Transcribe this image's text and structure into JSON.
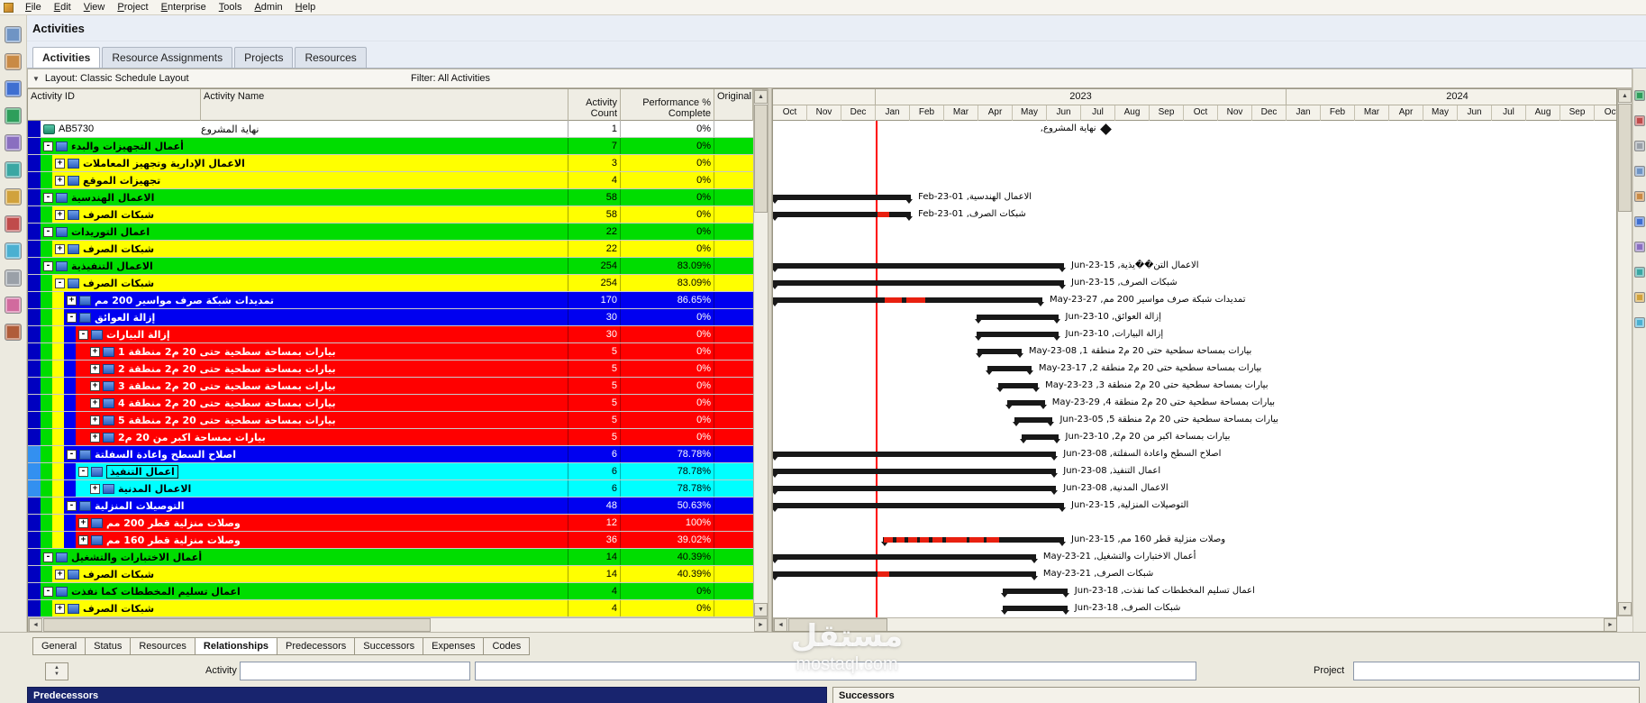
{
  "window": {
    "title": "Activities"
  },
  "menu": {
    "items": [
      "File",
      "Edit",
      "View",
      "Project",
      "Enterprise",
      "Tools",
      "Admin",
      "Help"
    ]
  },
  "view_tabs": [
    {
      "label": "Activities",
      "active": true
    },
    {
      "label": "Resource Assignments",
      "active": false
    },
    {
      "label": "Projects",
      "active": false
    },
    {
      "label": "Resources",
      "active": false
    }
  ],
  "layout_bar": {
    "layout": "Layout: Classic Schedule Layout",
    "filter": "Filter: All Activities"
  },
  "glyphs": {
    "chevron": "▼",
    "up": "▲",
    "down": "▼",
    "left": "◄",
    "right": "►"
  },
  "colors": {
    "white": "#ffffff",
    "green": "#00dd00",
    "yellow": "#ffff00",
    "blue": "#0000f0",
    "red": "#ff0000",
    "cyan": "#00ffff",
    "gutter": "#0000c0",
    "gutter_selected": "#3390f0",
    "data_date": "#ff0000",
    "bar": "#181818",
    "progress": "#e82010"
  },
  "table": {
    "columns": [
      "Activity ID",
      "Activity Name",
      "Activity\nCount",
      "Performance %\nComplete",
      "Original"
    ],
    "rows": [
      {
        "id": "AB5730",
        "name": "نهاية المشروع",
        "count": "1",
        "perf": "0%",
        "color": "white",
        "strips": [],
        "expand": null
      },
      {
        "name": "أعمال التجهيزات والبدء",
        "count": "7",
        "perf": "0%",
        "color": "green",
        "strips": [],
        "expand": "-"
      },
      {
        "name": "الاعمال الإدارية وتجهيز المعاملات",
        "count": "3",
        "perf": "0%",
        "color": "yellow",
        "strips": [
          "green"
        ],
        "expand": "+"
      },
      {
        "name": "تجهيزات الموقع",
        "count": "4",
        "perf": "0%",
        "color": "yellow",
        "strips": [
          "green"
        ],
        "expand": "+"
      },
      {
        "name": "الاعمال الهندسية",
        "count": "58",
        "perf": "0%",
        "color": "green",
        "strips": [],
        "expand": "-"
      },
      {
        "name": "شبكات الصرف",
        "count": "58",
        "perf": "0%",
        "color": "yellow",
        "strips": [
          "green"
        ],
        "expand": "+"
      },
      {
        "name": "اعمال التوريدات",
        "count": "22",
        "perf": "0%",
        "color": "green",
        "strips": [],
        "expand": "-"
      },
      {
        "name": "شبكات الصرف",
        "count": "22",
        "perf": "0%",
        "color": "yellow",
        "strips": [
          "green"
        ],
        "expand": "+"
      },
      {
        "name": "الاعمال التنفيذية",
        "count": "254",
        "perf": "83.09%",
        "color": "green",
        "strips": [],
        "expand": "-"
      },
      {
        "name": "شبكات الصرف",
        "count": "254",
        "perf": "83.09%",
        "color": "yellow",
        "strips": [
          "green"
        ],
        "expand": "-"
      },
      {
        "name": "تمديدات شبكة صرف مواسير 200 مم",
        "count": "170",
        "perf": "86.65%",
        "color": "blue",
        "strips": [
          "green",
          "yellow"
        ],
        "expand": "+"
      },
      {
        "name": "إزالة العوائق",
        "count": "30",
        "perf": "0%",
        "color": "blue",
        "strips": [
          "green",
          "yellow"
        ],
        "expand": "-"
      },
      {
        "name": "إزالة البيارات",
        "count": "30",
        "perf": "0%",
        "color": "red",
        "strips": [
          "green",
          "yellow",
          "blue"
        ],
        "expand": "-"
      },
      {
        "name": "بيارات بمساحة سطحية حتى 20 م2  منطقة 1",
        "count": "5",
        "perf": "0%",
        "color": "red",
        "strips": [
          "green",
          "yellow",
          "blue",
          "red"
        ],
        "expand": "+"
      },
      {
        "name": "بيارات بمساحة سطحية حتى 20 م2  منطقة 2",
        "count": "5",
        "perf": "0%",
        "color": "red",
        "strips": [
          "green",
          "yellow",
          "blue",
          "red"
        ],
        "expand": "+"
      },
      {
        "name": "بيارات بمساحة سطحية حتى 20 م2  منطقة 3",
        "count": "5",
        "perf": "0%",
        "color": "red",
        "strips": [
          "green",
          "yellow",
          "blue",
          "red"
        ],
        "expand": "+"
      },
      {
        "name": "بيارات بمساحة سطحية حتى 20 م2  منطقة 4",
        "count": "5",
        "perf": "0%",
        "color": "red",
        "strips": [
          "green",
          "yellow",
          "blue",
          "red"
        ],
        "expand": "+"
      },
      {
        "name": "بيارات بمساحة سطحية حتى 20 م2  منطقة 5",
        "count": "5",
        "perf": "0%",
        "color": "red",
        "strips": [
          "green",
          "yellow",
          "blue",
          "red"
        ],
        "expand": "+"
      },
      {
        "name": "بيارات بمساحة اكبر من 20 م2",
        "count": "5",
        "perf": "0%",
        "color": "red",
        "strips": [
          "green",
          "yellow",
          "blue",
          "red"
        ],
        "expand": "+"
      },
      {
        "name": "اصلاح السطح واعادة السفلتة",
        "count": "6",
        "perf": "78.78%",
        "color": "blue",
        "strips": [
          "green",
          "yellow"
        ],
        "expand": "-",
        "gutter_sel": true
      },
      {
        "name": "اعمال التنفيذ",
        "count": "6",
        "perf": "78.78%",
        "color": "cyan",
        "strips": [
          "green",
          "yellow",
          "blue"
        ],
        "expand": "-",
        "selected": true,
        "gutter_sel": true
      },
      {
        "name": "الاعمال المدنية",
        "count": "6",
        "perf": "78.78%",
        "color": "cyan",
        "strips": [
          "green",
          "yellow",
          "blue",
          "cyan"
        ],
        "expand": "+",
        "gutter_sel": true
      },
      {
        "name": "التوصيلات المنزلية",
        "count": "48",
        "perf": "50.63%",
        "color": "blue",
        "strips": [
          "green",
          "yellow"
        ],
        "expand": "-"
      },
      {
        "name": "وصلات منزلية قطر 200 مم",
        "count": "12",
        "perf": "100%",
        "color": "red",
        "strips": [
          "green",
          "yellow",
          "blue"
        ],
        "expand": "+"
      },
      {
        "name": "وصلات منزلية قطر 160 مم",
        "count": "36",
        "perf": "39.02%",
        "color": "red",
        "strips": [
          "green",
          "yellow",
          "blue"
        ],
        "expand": "+"
      },
      {
        "name": "أعمال الاختبارات والتشغيل",
        "count": "14",
        "perf": "40.39%",
        "color": "green",
        "strips": [],
        "expand": "-"
      },
      {
        "name": "شبكات الصرف",
        "count": "14",
        "perf": "40.39%",
        "color": "yellow",
        "strips": [
          "green"
        ],
        "expand": "+"
      },
      {
        "name": "اعمال تسليم المخططات كما نفذت",
        "count": "4",
        "perf": "0%",
        "color": "green",
        "strips": [],
        "expand": "-"
      },
      {
        "name": "شبكات الصرف",
        "count": "4",
        "perf": "0%",
        "color": "yellow",
        "strips": [
          "green"
        ],
        "expand": "+"
      }
    ]
  },
  "gantt": {
    "years": [
      {
        "label": "",
        "span": 3
      },
      {
        "label": "2023",
        "span": 12
      },
      {
        "label": "2024",
        "span": 10
      }
    ],
    "months": [
      "Oct",
      "Nov",
      "Dec",
      "Jan",
      "Feb",
      "Mar",
      "Apr",
      "May",
      "Jun",
      "Jul",
      "Aug",
      "Sep",
      "Oct",
      "Nov",
      "Dec",
      "Jan",
      "Feb",
      "Mar",
      "Apr",
      "May",
      "Jun",
      "Jul",
      "Aug",
      "Sep",
      "Oct"
    ],
    "data_date_month": 3,
    "rows": [
      {
        "m": 9.7,
        "label": "نهاية المشروع,"
      },
      null,
      null,
      null,
      {
        "s": 0,
        "e": 4.03,
        "label": "الاعمال الهندسية, 01-Feb-23"
      },
      {
        "s": 0,
        "e": 4.03,
        "red": [
          [
            3.05,
            3.4
          ]
        ],
        "label": "شبكات الصرف, 01-Feb-23"
      },
      null,
      null,
      {
        "s": 0,
        "e": 8.5,
        "label": "الاعمال التن��يذية, 15-Jun-23"
      },
      {
        "s": 0,
        "e": 8.5,
        "label": "شبكات الصرف, 15-Jun-23"
      },
      {
        "s": 0,
        "e": 7.87,
        "red": [
          [
            3.25,
            3.75
          ],
          [
            3.9,
            4.45
          ]
        ],
        "label": "تمديدات شبكة صرف مواسير 200 مم, 27-May-23"
      },
      {
        "s": 5.95,
        "e": 8.33,
        "label": "إزالة العوائق, 10-Jun-23"
      },
      {
        "s": 5.95,
        "e": 8.33,
        "label": "إزالة البيارات, 10-Jun-23"
      },
      {
        "s": 5.97,
        "e": 7.26,
        "label": "بيارات بمساحة سطحية حتى 20 م2 منطقة 1, 08-May-23"
      },
      {
        "s": 6.27,
        "e": 7.55,
        "label": "بيارات بمساحة سطحية حتى 20 م2 منطقة 2, 17-May-23"
      },
      {
        "s": 6.57,
        "e": 7.74,
        "label": "بيارات بمساحة سطحية حتى 20 م2 منطقة 3, 23-May-23"
      },
      {
        "s": 6.84,
        "e": 7.94,
        "label": "بيارات بمساحة سطحية حتى 20 م2 منطقة 4, 29-May-23"
      },
      {
        "s": 7.05,
        "e": 8.17,
        "label": "بيارات بمساحة سطحية حتى 20 م2 منطقة 5, 05-Jun-23"
      },
      {
        "s": 7.25,
        "e": 8.33,
        "label": "بيارات بمساحة اكبر من 20 م2, 10-Jun-23"
      },
      {
        "s": 0,
        "e": 8.27,
        "label": "اصلاح السطح واعادة السفلتة, 08-Jun-23"
      },
      {
        "s": 0,
        "e": 8.27,
        "label": "اعمال التنفيذ, 08-Jun-23"
      },
      {
        "s": 0,
        "e": 8.27,
        "label": "الاعمال المدنية, 08-Jun-23"
      },
      {
        "s": 0,
        "e": 8.5,
        "label": "التوصيلات المنزلية, 15-Jun-23"
      },
      null,
      {
        "s": 3.2,
        "e": 8.5,
        "red": [
          [
            3.25,
            3.5
          ],
          [
            3.6,
            3.85
          ],
          [
            3.95,
            4.2
          ],
          [
            4.3,
            4.55
          ],
          [
            4.65,
            4.95
          ],
          [
            5.05,
            5.65
          ],
          [
            5.75,
            6.15
          ],
          [
            6.25,
            6.6
          ]
        ],
        "label": "وصلات منزلية قطر 160 مم, 15-Jun-23"
      },
      {
        "s": 0,
        "e": 7.68,
        "label": "أعمال الاختبارات والتشغيل, 21-May-23"
      },
      {
        "s": 0,
        "e": 7.68,
        "red": [
          [
            3.05,
            3.4
          ]
        ],
        "label": "شبكات الصرف, 21-May-23"
      },
      {
        "s": 6.7,
        "e": 8.6,
        "label": "اعمال تسليم المخططات كما نفذت, 18-Jun-23"
      },
      {
        "s": 6.7,
        "e": 8.6,
        "label": "شبكات الصرف, 18-Jun-23"
      }
    ]
  },
  "left_toolbar": [
    {
      "name": "activities-view",
      "color": "#6f94c4"
    },
    {
      "name": "wps-docs",
      "color": "#c98a45"
    },
    {
      "name": "projects",
      "color": "#3f6fd1"
    },
    {
      "name": "resources",
      "color": "#2e9e5b"
    },
    {
      "name": "reports",
      "color": "#8a6fc0"
    },
    {
      "name": "tracking",
      "color": "#3aa7a3"
    },
    {
      "name": "wbs",
      "color": "#d1a23c"
    },
    {
      "name": "assignments",
      "color": "#c04b4b"
    },
    {
      "name": "expenses",
      "color": "#4bb0d1"
    },
    {
      "name": "thresholds",
      "color": "#9aa0a8"
    },
    {
      "name": "issues",
      "color": "#d16a9e"
    },
    {
      "name": "risks",
      "color": "#b05c3a"
    }
  ],
  "right_toolbar": [
    {
      "name": "add",
      "color": "#2e9e5b"
    },
    {
      "name": "delete",
      "color": "#c04b4b"
    },
    {
      "name": "cut",
      "color": "#9aa0a8"
    },
    {
      "name": "copy",
      "color": "#6f94c4"
    },
    {
      "name": "paste",
      "color": "#c98a45"
    },
    {
      "name": "schedule",
      "color": "#3f6fd1"
    },
    {
      "name": "level-resources",
      "color": "#8a6fc0"
    },
    {
      "name": "summarize",
      "color": "#3aa7a3"
    },
    {
      "name": "spotlight",
      "color": "#d1a23c"
    },
    {
      "name": "zoom",
      "color": "#4bb0d1"
    }
  ],
  "details": {
    "tabs": [
      "General",
      "Status",
      "Resources",
      "Relationships",
      "Predecessors",
      "Successors",
      "Expenses",
      "Codes"
    ],
    "active_tab": "Relationships",
    "activity_label": "Activity",
    "project_label": "Project",
    "predecessors_label": "Predecessors",
    "successors_label": "Successors",
    "fields": {
      "activity_id": "",
      "activity_name": "",
      "project": ""
    }
  },
  "watermark": {
    "brand": "مستقل",
    "domain": "mostaql.com"
  }
}
